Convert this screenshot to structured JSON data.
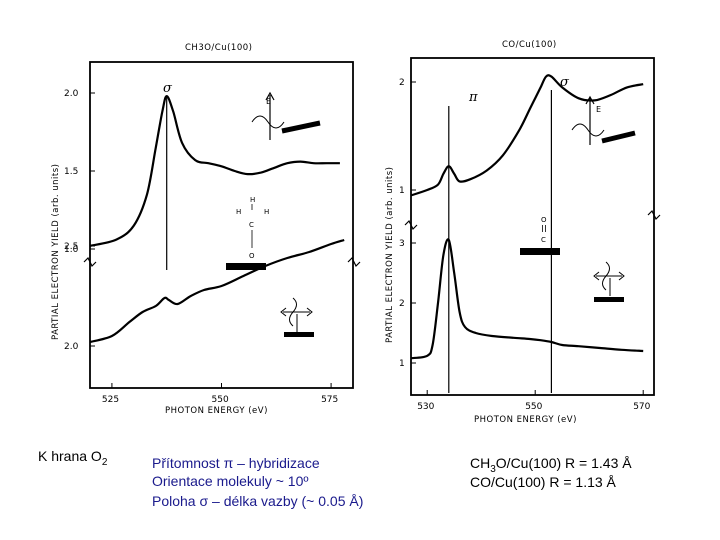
{
  "chart_data": [
    {
      "type": "line",
      "title": "CH3O/Cu(100)",
      "xlabel": "PHOTON ENERGY (eV)",
      "ylabel": "PARTIAL ELECTRON YIELD (arb. units)",
      "xlim": [
        520,
        580
      ],
      "x_ticks": [
        525,
        550,
        575
      ],
      "y_ticks_upper": [
        "1.0",
        "1.5",
        "2.0"
      ],
      "y_ticks_lower": [
        "2.0",
        "2.5"
      ],
      "peak_label": "σ",
      "peak_energy": 537.5,
      "molecule": {
        "top": "H",
        "middle_left": "H",
        "middle_center": "C",
        "middle_right": "H",
        "bond": "|",
        "bottom": "O"
      },
      "series": [
        {
          "name": "upper (normal incidence)",
          "x": [
            520,
            526,
            530,
            533,
            535,
            536.5,
            537.5,
            539,
            541,
            544,
            547,
            550,
            553,
            556,
            559,
            562,
            565,
            568,
            571,
            574,
            577
          ],
          "y": [
            1.02,
            1.06,
            1.15,
            1.35,
            1.65,
            1.88,
            1.98,
            1.88,
            1.68,
            1.57,
            1.55,
            1.53,
            1.5,
            1.48,
            1.49,
            1.52,
            1.55,
            1.56,
            1.55,
            1.55,
            1.55
          ]
        },
        {
          "name": "lower (grazing incidence)",
          "x": [
            520,
            525,
            529,
            532,
            535,
            537,
            538,
            540,
            543,
            546,
            550,
            555,
            560,
            565,
            570,
            575,
            578
          ],
          "y": [
            2.02,
            2.05,
            2.12,
            2.17,
            2.2,
            2.24,
            2.23,
            2.21,
            2.25,
            2.28,
            2.3,
            2.35,
            2.4,
            2.44,
            2.47,
            2.51,
            2.53
          ]
        }
      ]
    },
    {
      "type": "line",
      "title": "CO/Cu(100)",
      "xlabel": "PHOTON ENERGY (eV)",
      "ylabel": "PARTIAL ELECTRON YIELD (arb. units)",
      "xlim": [
        527,
        572
      ],
      "x_ticks": [
        530,
        550,
        570
      ],
      "y_ticks_upper": [
        "1",
        "2"
      ],
      "y_ticks_lower": [
        "1",
        "2",
        "3"
      ],
      "peak_labels": [
        "π",
        "σ"
      ],
      "pi_energy": 534,
      "sigma_energy": 553,
      "molecule": {
        "top": "O",
        "bond": "||",
        "bottom": "C"
      },
      "series": [
        {
          "name": "upper (normal incidence)",
          "x": [
            527,
            530,
            532,
            533,
            534,
            535,
            536,
            538,
            541,
            544,
            547,
            549,
            550,
            551,
            552,
            553,
            555,
            558,
            561,
            564,
            567,
            570
          ],
          "y": [
            0.95,
            1.0,
            1.05,
            1.15,
            1.22,
            1.15,
            1.08,
            1.1,
            1.18,
            1.32,
            1.55,
            1.75,
            1.85,
            1.95,
            2.05,
            2.05,
            1.95,
            1.85,
            1.83,
            1.88,
            1.95,
            1.98
          ]
        },
        {
          "name": "lower (grazing incidence)",
          "x": [
            527,
            530,
            531,
            532,
            533,
            534,
            535,
            536,
            537,
            539,
            542,
            546,
            549,
            551,
            553,
            555,
            558,
            562,
            566,
            570
          ],
          "y": [
            1.08,
            1.12,
            1.3,
            2.0,
            2.8,
            3.05,
            2.5,
            1.85,
            1.6,
            1.5,
            1.45,
            1.42,
            1.4,
            1.38,
            1.35,
            1.3,
            1.28,
            1.25,
            1.22,
            1.2
          ]
        }
      ]
    }
  ],
  "captions": {
    "edge_prefix": "K hrana O",
    "edge_sub": "2",
    "line1": "Přítomnost π – hybridizace",
    "line2": "Orientace molekuly ~ 10º",
    "line3": "Poloha σ – délka vazby (~ 0.05 Å)",
    "r1_pre": "CH",
    "r1_sub": "3",
    "r1_post": "O/Cu(100) R = 1.43 Å",
    "r2": "CO/Cu(100) R = 1.13 Å"
  },
  "colors": {
    "text_accent": "#1a1a8c",
    "ink": "#000000"
  }
}
